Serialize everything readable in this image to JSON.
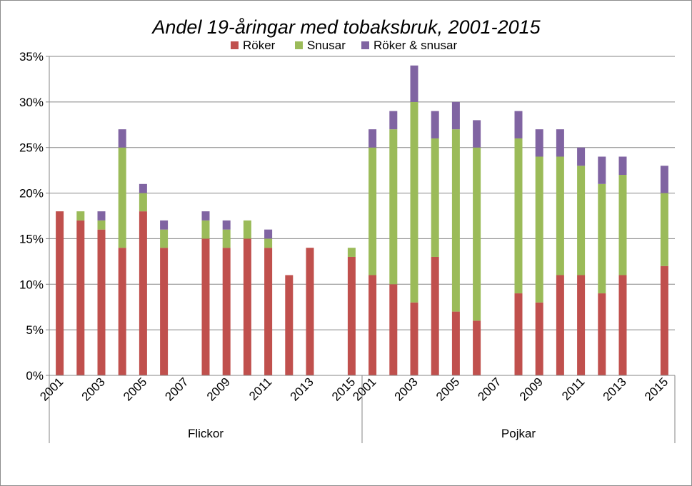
{
  "chart_data": {
    "type": "bar",
    "stacked": true,
    "title": "Andel 19-åringar med tobaksbruk, 2001-2015",
    "legend_position": "top",
    "grid": true,
    "ylim": [
      0,
      35
    ],
    "y_ticks": [
      "0%",
      "5%",
      "10%",
      "15%",
      "20%",
      "25%",
      "30%",
      "35%"
    ],
    "y_tick_values": [
      0,
      5,
      10,
      15,
      20,
      25,
      30,
      35
    ],
    "colors": {
      "Röker": "#C0504D",
      "Snusar": "#9BBB59",
      "Röker & snusar": "#8064A2",
      "grid": "#868686",
      "axis": "#868686"
    },
    "groups": [
      {
        "name": "Flickor",
        "years": [
          "2001",
          "2002",
          "2003",
          "2004",
          "2005",
          "2006",
          "2007",
          "2008",
          "2009",
          "2010",
          "2011",
          "2012",
          "2013",
          "2014",
          "2015"
        ],
        "x_tick_labels": [
          "2001",
          "2003",
          "2005",
          "2007",
          "2009",
          "2011",
          "2013",
          "2015"
        ],
        "series": [
          {
            "name": "Röker",
            "values": [
              18,
              17,
              16,
              14,
              18,
              14,
              null,
              15,
              14,
              15,
              14,
              11,
              14,
              null,
              13
            ]
          },
          {
            "name": "Snusar",
            "values": [
              0,
              1,
              1,
              11,
              2,
              2,
              null,
              2,
              2,
              2,
              1,
              0,
              0,
              null,
              1
            ]
          },
          {
            "name": "Röker & snusar",
            "values": [
              0,
              0,
              1,
              2,
              1,
              1,
              null,
              1,
              1,
              0,
              1,
              0,
              0,
              null,
              0
            ]
          }
        ]
      },
      {
        "name": "Pojkar",
        "years": [
          "2001",
          "2002",
          "2003",
          "2004",
          "2005",
          "2006",
          "2007",
          "2008",
          "2009",
          "2010",
          "2011",
          "2012",
          "2013",
          "2014",
          "2015"
        ],
        "x_tick_labels": [
          "2001",
          "2003",
          "2005",
          "2007",
          "2009",
          "2011",
          "2013",
          "2015"
        ],
        "series": [
          {
            "name": "Röker",
            "values": [
              11,
              10,
              8,
              13,
              7,
              6,
              null,
              9,
              8,
              11,
              11,
              9,
              11,
              null,
              12
            ]
          },
          {
            "name": "Snusar",
            "values": [
              14,
              17,
              22,
              13,
              20,
              19,
              null,
              17,
              16,
              13,
              12,
              12,
              11,
              null,
              8
            ]
          },
          {
            "name": "Röker & snusar",
            "values": [
              2,
              2,
              4,
              3,
              3,
              3,
              null,
              3,
              3,
              3,
              2,
              3,
              2,
              null,
              3
            ]
          }
        ]
      }
    ]
  }
}
